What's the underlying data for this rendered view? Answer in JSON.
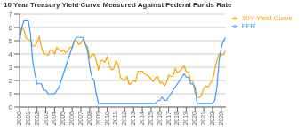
{
  "chart_data": {
    "type": "line",
    "title": "10 Year Treasury Yield Curve Measured Against Federal Funds Rate",
    "x": [
      2000.0,
      2000.25,
      2000.5,
      2000.75,
      2001.0,
      2001.25,
      2001.5,
      2001.75,
      2002.0,
      2002.25,
      2002.5,
      2002.75,
      2003.0,
      2003.25,
      2003.5,
      2003.75,
      2004.0,
      2004.25,
      2004.5,
      2004.75,
      2005.0,
      2005.25,
      2005.5,
      2005.75,
      2006.0,
      2006.25,
      2006.5,
      2006.75,
      2007.0,
      2007.25,
      2007.5,
      2007.75,
      2008.0,
      2008.25,
      2008.5,
      2008.75,
      2009.0,
      2009.25,
      2009.5,
      2009.75,
      2010.0,
      2010.25,
      2010.5,
      2010.75,
      2011.0,
      2011.25,
      2011.5,
      2011.75,
      2012.0,
      2012.25,
      2012.5,
      2012.75,
      2013.0,
      2013.25,
      2013.5,
      2013.75,
      2014.0,
      2014.25,
      2014.5,
      2014.75,
      2015.0,
      2015.25,
      2015.5,
      2015.75,
      2016.0,
      2016.25,
      2016.5,
      2016.75,
      2017.0,
      2017.25,
      2017.5,
      2017.75,
      2018.0,
      2018.25,
      2018.5,
      2018.75,
      2019.0,
      2019.25,
      2019.5,
      2019.75,
      2020.0,
      2020.25,
      2020.5,
      2020.75,
      2021.0,
      2021.25,
      2021.5,
      2021.75,
      2022.0,
      2022.25,
      2022.5,
      2022.75,
      2023.0,
      2023.25,
      2023.5
    ],
    "series": [
      {
        "name": "10Y Yield Curve",
        "color": "#FFA500",
        "values": [
          5.1,
          6.0,
          5.8,
          5.2,
          5.1,
          5.0,
          4.6,
          4.6,
          4.9,
          5.3,
          4.5,
          4.0,
          4.0,
          3.9,
          4.3,
          4.3,
          4.0,
          4.5,
          4.3,
          4.2,
          4.3,
          4.1,
          4.2,
          4.5,
          4.5,
          5.0,
          5.0,
          4.7,
          4.8,
          5.1,
          4.7,
          4.6,
          3.7,
          3.9,
          4.0,
          3.5,
          2.8,
          3.5,
          3.5,
          3.4,
          3.8,
          3.1,
          2.8,
          2.9,
          3.5,
          3.2,
          2.2,
          2.1,
          2.0,
          2.3,
          1.7,
          1.8,
          2.0,
          1.9,
          2.7,
          2.7,
          2.7,
          2.5,
          2.4,
          2.3,
          2.1,
          1.9,
          2.2,
          2.3,
          1.8,
          1.9,
          1.6,
          1.8,
          2.4,
          2.3,
          2.3,
          2.9,
          2.6,
          2.7,
          2.9,
          3.1,
          2.7,
          2.6,
          2.0,
          1.9,
          1.1,
          0.7,
          0.7,
          0.9,
          1.4,
          1.6,
          1.5,
          1.8,
          2.0,
          2.8,
          3.5,
          4.0,
          3.9,
          4.0,
          4.3
        ]
      },
      {
        "name": "FFR",
        "color": "#3399FF",
        "values": [
          4.9,
          6.0,
          6.5,
          6.5,
          6.5,
          5.5,
          3.5,
          2.5,
          1.75,
          1.75,
          1.75,
          1.25,
          1.25,
          1.0,
          1.0,
          1.0,
          1.0,
          1.25,
          1.5,
          2.0,
          2.5,
          3.0,
          3.5,
          4.0,
          4.5,
          5.0,
          5.25,
          5.25,
          5.25,
          5.25,
          4.75,
          4.25,
          3.0,
          2.25,
          2.0,
          1.0,
          0.25,
          0.25,
          0.25,
          0.25,
          0.25,
          0.25,
          0.25,
          0.25,
          0.25,
          0.25,
          0.25,
          0.25,
          0.25,
          0.25,
          0.25,
          0.25,
          0.25,
          0.25,
          0.25,
          0.25,
          0.25,
          0.25,
          0.25,
          0.25,
          0.25,
          0.25,
          0.25,
          0.5,
          0.5,
          0.75,
          0.5,
          0.5,
          0.75,
          1.0,
          1.25,
          1.5,
          1.75,
          2.0,
          2.25,
          2.5,
          2.25,
          2.25,
          1.75,
          1.75,
          1.5,
          0.25,
          0.25,
          0.25,
          0.25,
          0.25,
          0.25,
          0.25,
          0.25,
          0.5,
          1.5,
          3.5,
          4.5,
          5.0,
          5.25
        ]
      }
    ],
    "xlim": [
      2000,
      2023.5
    ],
    "xticks": [
      2000,
      2001,
      2002,
      2003,
      2004,
      2005,
      2006,
      2007,
      2008,
      2009,
      2010,
      2011,
      2012,
      2013,
      2014,
      2015,
      2016,
      2017,
      2018,
      2019,
      2020,
      2021,
      2022,
      2023
    ],
    "ylim": [
      0,
      7
    ],
    "yticks": [
      0,
      1,
      2,
      3,
      4,
      5,
      6,
      7
    ],
    "grid": "y",
    "legend": "right"
  }
}
